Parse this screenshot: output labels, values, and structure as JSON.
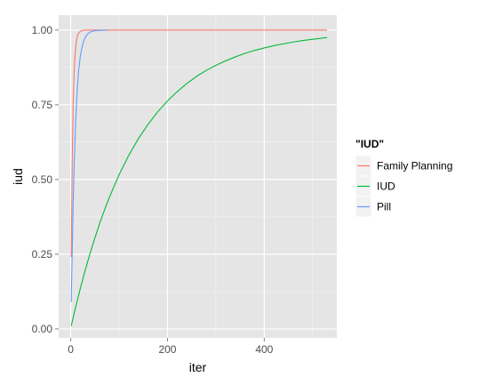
{
  "chart_data": {
    "type": "line",
    "title": "",
    "xlabel": "iter",
    "ylabel": "iud",
    "xlim": [
      -25,
      550
    ],
    "ylim": [
      -0.03,
      1.05
    ],
    "x_ticks": [
      0,
      200,
      400
    ],
    "x_tick_labels": [
      "0",
      "200",
      "400"
    ],
    "y_ticks": [
      0,
      0.25,
      0.5,
      0.75,
      1.0
    ],
    "y_tick_labels": [
      "0.00",
      "0.25",
      "0.50",
      "0.75",
      "1.00"
    ],
    "grid": true,
    "legend": {
      "title": "\"IUD\"",
      "position": "right"
    },
    "series": [
      {
        "name": "Family Planning",
        "color": "#F8766D",
        "x": [
          1,
          3,
          5,
          7,
          9,
          11,
          13,
          15,
          18,
          21,
          25,
          30,
          35,
          40,
          530
        ],
        "y": [
          0.24,
          0.55,
          0.75,
          0.86,
          0.92,
          0.955,
          0.975,
          0.986,
          0.993,
          0.997,
          0.999,
          1.0,
          1.0,
          1.0,
          1.0
        ]
      },
      {
        "name": "IUD",
        "color": "#00BA38",
        "x": [
          1,
          10,
          20,
          30,
          40,
          50,
          60,
          70,
          80,
          100,
          120,
          140,
          160,
          180,
          200,
          220,
          240,
          260,
          280,
          300,
          320,
          340,
          360,
          380,
          400,
          420,
          440,
          460,
          480,
          500,
          530
        ],
        "y": [
          0.01,
          0.072,
          0.137,
          0.197,
          0.253,
          0.305,
          0.354,
          0.399,
          0.441,
          0.516,
          0.581,
          0.637,
          0.685,
          0.727,
          0.763,
          0.794,
          0.821,
          0.845,
          0.865,
          0.882,
          0.897,
          0.91,
          0.922,
          0.932,
          0.94,
          0.948,
          0.954,
          0.96,
          0.965,
          0.969,
          0.975
        ]
      },
      {
        "name": "Pill",
        "color": "#619CFF",
        "x": [
          1,
          3,
          5,
          7,
          10,
          13,
          16,
          20,
          25,
          30,
          35,
          40,
          50,
          60,
          75
        ],
        "y": [
          0.09,
          0.26,
          0.42,
          0.55,
          0.69,
          0.79,
          0.86,
          0.915,
          0.955,
          0.976,
          0.987,
          0.993,
          0.998,
          0.999,
          1.0
        ]
      }
    ]
  }
}
